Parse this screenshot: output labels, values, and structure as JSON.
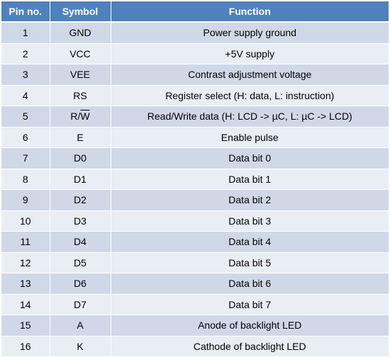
{
  "table": {
    "headers": [
      "Pin no.",
      "Symbol",
      "Function"
    ],
    "rows": [
      {
        "pin": "1",
        "symbol": "GND",
        "function": "Power supply ground"
      },
      {
        "pin": "2",
        "symbol": "VCC",
        "function": "+5V supply"
      },
      {
        "pin": "3",
        "symbol": "VEE",
        "function": "Contrast adjustment voltage"
      },
      {
        "pin": "4",
        "symbol": "RS",
        "function": "Register select (H: data, L: instruction)"
      },
      {
        "pin": "5",
        "symbol": "R/W",
        "symbol_main": "R/",
        "symbol_overline": "W",
        "function": "Read/Write data (H: LCD -> µC, L: µC -> LCD)"
      },
      {
        "pin": "6",
        "symbol": "E",
        "function": "Enable pulse"
      },
      {
        "pin": "7",
        "symbol": "D0",
        "function": "Data bit 0"
      },
      {
        "pin": "8",
        "symbol": "D1",
        "function": "Data bit 1"
      },
      {
        "pin": "9",
        "symbol": "D2",
        "function": "Data bit 2"
      },
      {
        "pin": "10",
        "symbol": "D3",
        "function": "Data bit 3"
      },
      {
        "pin": "11",
        "symbol": "D4",
        "function": "Data bit 4"
      },
      {
        "pin": "12",
        "symbol": "D5",
        "function": "Data bit 5"
      },
      {
        "pin": "13",
        "symbol": "D6",
        "function": "Data bit 6"
      },
      {
        "pin": "14",
        "symbol": "D7",
        "function": "Data bit 7"
      },
      {
        "pin": "15",
        "symbol": "A",
        "function": "Anode of backlight LED"
      },
      {
        "pin": "16",
        "symbol": "K",
        "function": "Cathode of backlight LED"
      }
    ]
  },
  "colors": {
    "header_bg": "#4f81bd",
    "row_odd_bg": "#d0d8e8",
    "row_even_bg": "#e9edf4"
  }
}
